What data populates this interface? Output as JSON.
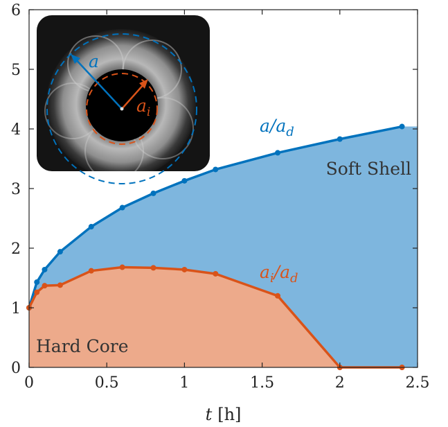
{
  "chart_data": {
    "type": "area",
    "xlabel_var": "t",
    "xlabel_unit": "[h]",
    "ylabel": "",
    "xlim": [
      0,
      2.5
    ],
    "ylim": [
      0,
      6
    ],
    "xticks": [
      0,
      0.5,
      1,
      1.5,
      2,
      2.5
    ],
    "xtick_labels": [
      "0",
      "0.5",
      "1",
      "1.5",
      "2",
      "2.5"
    ],
    "yticks": [
      0,
      1,
      2,
      3,
      4,
      5,
      6
    ],
    "ytick_labels": [
      "0",
      "1",
      "2",
      "3",
      "4",
      "5",
      "6"
    ],
    "grid": false,
    "series": [
      {
        "name": "a/a_d",
        "label_main": "a/a",
        "label_sub": "d",
        "color": "#0072BD",
        "fill": "#7EB6DE",
        "x": [
          0,
          0.05,
          0.1,
          0.2,
          0.4,
          0.6,
          0.8,
          1.0,
          1.2,
          1.6,
          2.0,
          2.4
        ],
        "y": [
          1.0,
          1.43,
          1.64,
          1.94,
          2.36,
          2.68,
          2.92,
          3.13,
          3.32,
          3.6,
          3.83,
          4.04
        ]
      },
      {
        "name": "a_i/a_d",
        "label_main": "a",
        "label_sub1": "i",
        "label_mid": "/a",
        "label_sub2": "d",
        "color": "#D95319",
        "fill": "#EDAA8B",
        "x": [
          0,
          0.05,
          0.1,
          0.2,
          0.4,
          0.6,
          0.8,
          1.0,
          1.2,
          1.6,
          2.0,
          2.4
        ],
        "y": [
          1.0,
          1.26,
          1.37,
          1.38,
          1.62,
          1.68,
          1.67,
          1.64,
          1.57,
          1.2,
          0.0,
          0.0
        ]
      }
    ],
    "region_labels": {
      "shell": "Soft Shell",
      "core": "Hard Core"
    },
    "inset": {
      "outer_label": "a",
      "inner_label_main": "a",
      "inner_label_sub": "i"
    }
  }
}
